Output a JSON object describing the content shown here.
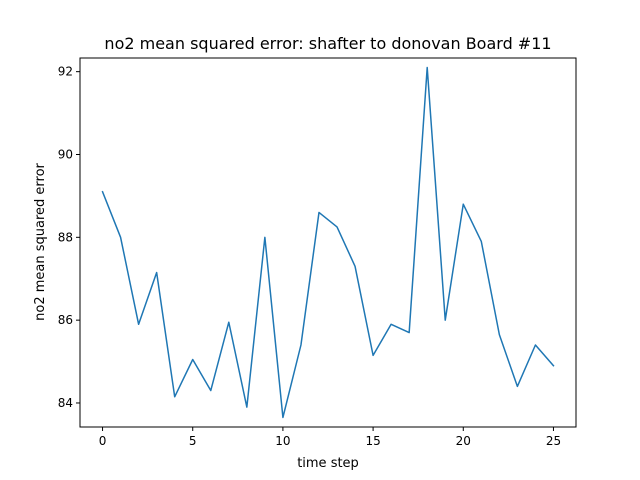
{
  "chart_data": {
    "type": "line",
    "title": "no2 mean squared error: shafter to donovan Board #11",
    "xlabel": "time step",
    "ylabel": "no2 mean squared error",
    "x": [
      0,
      1,
      2,
      3,
      4,
      5,
      6,
      7,
      8,
      9,
      10,
      11,
      12,
      13,
      14,
      15,
      16,
      17,
      18,
      19,
      20,
      21,
      22,
      23,
      24,
      25
    ],
    "series": [
      {
        "values": [
          89.1,
          88.0,
          85.9,
          87.15,
          84.15,
          85.05,
          84.3,
          85.95,
          83.9,
          88.0,
          83.65,
          85.4,
          88.6,
          88.25,
          87.3,
          85.15,
          85.9,
          85.7,
          92.1,
          86.0,
          88.8,
          87.9,
          85.65,
          84.4,
          85.4,
          84.9
        ],
        "color": "#1f77b4"
      }
    ],
    "xlim": [
      -1.25,
      26.25
    ],
    "ylim": [
      83.42,
      92.33
    ],
    "xticks": [
      0,
      5,
      10,
      15,
      20,
      25
    ],
    "yticks": [
      84,
      86,
      88,
      90,
      92
    ],
    "grid": false,
    "legend": "none"
  }
}
